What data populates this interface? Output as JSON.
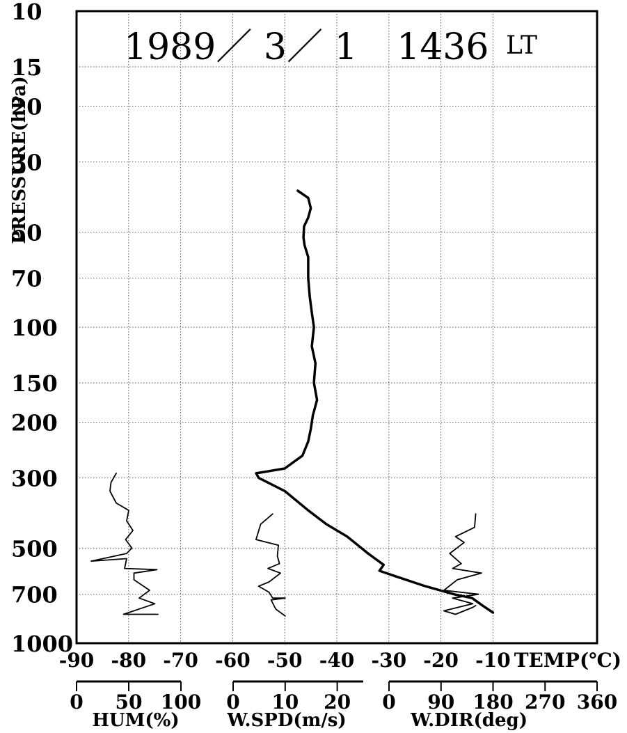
{
  "chart_data": {
    "type": "line",
    "title": "1989／ 3／ 1　1436 LT",
    "title_parts": {
      "date": "1989／ 3／ 1",
      "time": "1436",
      "suffix": "LT"
    },
    "ylabel": "PRESSURE(hPa)",
    "y_scale": "log",
    "y_direction": "descending-upward",
    "ylim": [
      10,
      1000
    ],
    "y_ticks": [
      10,
      15,
      20,
      30,
      50,
      70,
      100,
      150,
      200,
      300,
      500,
      700,
      1000
    ],
    "grid": true,
    "temp_axis": {
      "label": "TEMP(℃)",
      "range": [
        -90,
        10
      ],
      "ticks": [
        -90,
        -80,
        -70,
        -60,
        -50,
        -40,
        -30,
        -20,
        -10
      ]
    },
    "hum_axis": {
      "label": "HUM(%)",
      "range": [
        0,
        100
      ],
      "ticks": [
        0,
        50,
        100
      ]
    },
    "wspd_axis": {
      "label": "W.SPD(m/s)",
      "range": [
        0,
        25
      ],
      "ticks": [
        0,
        10,
        20
      ]
    },
    "wdir_axis": {
      "label": "W.DIR(deg)",
      "range": [
        0,
        360
      ],
      "ticks": [
        0,
        90,
        180,
        270,
        360
      ]
    },
    "series": [
      {
        "key": "temp",
        "axis": "temp",
        "stroke": "#000000",
        "thick": true,
        "points": [
          [
            -47.5,
            37
          ],
          [
            -45.5,
            39
          ],
          [
            -45,
            42
          ],
          [
            -45.5,
            45
          ],
          [
            -46.3,
            48
          ],
          [
            -46.4,
            52
          ],
          [
            -46.2,
            55
          ],
          [
            -45.5,
            60
          ],
          [
            -45.5,
            70
          ],
          [
            -45.2,
            80
          ],
          [
            -44.8,
            90
          ],
          [
            -44.4,
            100
          ],
          [
            -44.8,
            115
          ],
          [
            -44.1,
            130
          ],
          [
            -44.4,
            150
          ],
          [
            -43.8,
            170
          ],
          [
            -44.6,
            190
          ],
          [
            -45,
            210
          ],
          [
            -45.5,
            230
          ],
          [
            -46.6,
            255
          ],
          [
            -50,
            280
          ],
          [
            -55.5,
            290
          ],
          [
            -55,
            300
          ],
          [
            -50,
            330
          ],
          [
            -45.5,
            380
          ],
          [
            -42,
            420
          ],
          [
            -38,
            460
          ],
          [
            -34,
            520
          ],
          [
            -31,
            565
          ],
          [
            -31.8,
            590
          ],
          [
            -28,
            620
          ],
          [
            -23,
            660
          ],
          [
            -17.5,
            700
          ],
          [
            -14,
            720
          ],
          [
            -12,
            760
          ],
          [
            -10,
            800
          ]
        ]
      },
      {
        "key": "hum",
        "axis": "hum",
        "stroke": "#000000",
        "thick": false,
        "points": [
          [
            38,
            290
          ],
          [
            33,
            310
          ],
          [
            32,
            330
          ],
          [
            38,
            360
          ],
          [
            50,
            380
          ],
          [
            48,
            410
          ],
          [
            54,
            440
          ],
          [
            47,
            470
          ],
          [
            53,
            500
          ],
          [
            48,
            520
          ],
          [
            14,
            550
          ],
          [
            48,
            540
          ],
          [
            46,
            580
          ],
          [
            77,
            585
          ],
          [
            55,
            600
          ],
          [
            55,
            630
          ],
          [
            70,
            680
          ],
          [
            60,
            720
          ],
          [
            75,
            750
          ],
          [
            45,
            810
          ],
          [
            78,
            810
          ]
        ]
      },
      {
        "key": "wspd",
        "axis": "wspd",
        "stroke": "#000000",
        "thick": false,
        "points": [
          [
            7.6,
            390
          ],
          [
            5.3,
            420
          ],
          [
            4.4,
            470
          ],
          [
            8.7,
            490
          ],
          [
            8.5,
            530
          ],
          [
            8.9,
            560
          ],
          [
            6.7,
            580
          ],
          [
            9.1,
            600
          ],
          [
            6.9,
            640
          ],
          [
            4.9,
            660
          ],
          [
            6.9,
            690
          ],
          [
            7.6,
            720
          ],
          [
            10,
            720
          ],
          [
            7.3,
            730
          ],
          [
            8.2,
            780
          ],
          [
            10,
            820
          ]
        ]
      },
      {
        "key": "wdir",
        "axis": "wdir",
        "stroke": "#000000",
        "thick": false,
        "points": [
          [
            150,
            390
          ],
          [
            148,
            430
          ],
          [
            115,
            460
          ],
          [
            130,
            480
          ],
          [
            105,
            520
          ],
          [
            125,
            560
          ],
          [
            110,
            580
          ],
          [
            160,
            600
          ],
          [
            118,
            630
          ],
          [
            95,
            680
          ],
          [
            155,
            700
          ],
          [
            110,
            720
          ],
          [
            145,
            750
          ],
          [
            95,
            790
          ],
          [
            115,
            810
          ],
          [
            145,
            770
          ],
          [
            150,
            760
          ]
        ]
      }
    ]
  }
}
